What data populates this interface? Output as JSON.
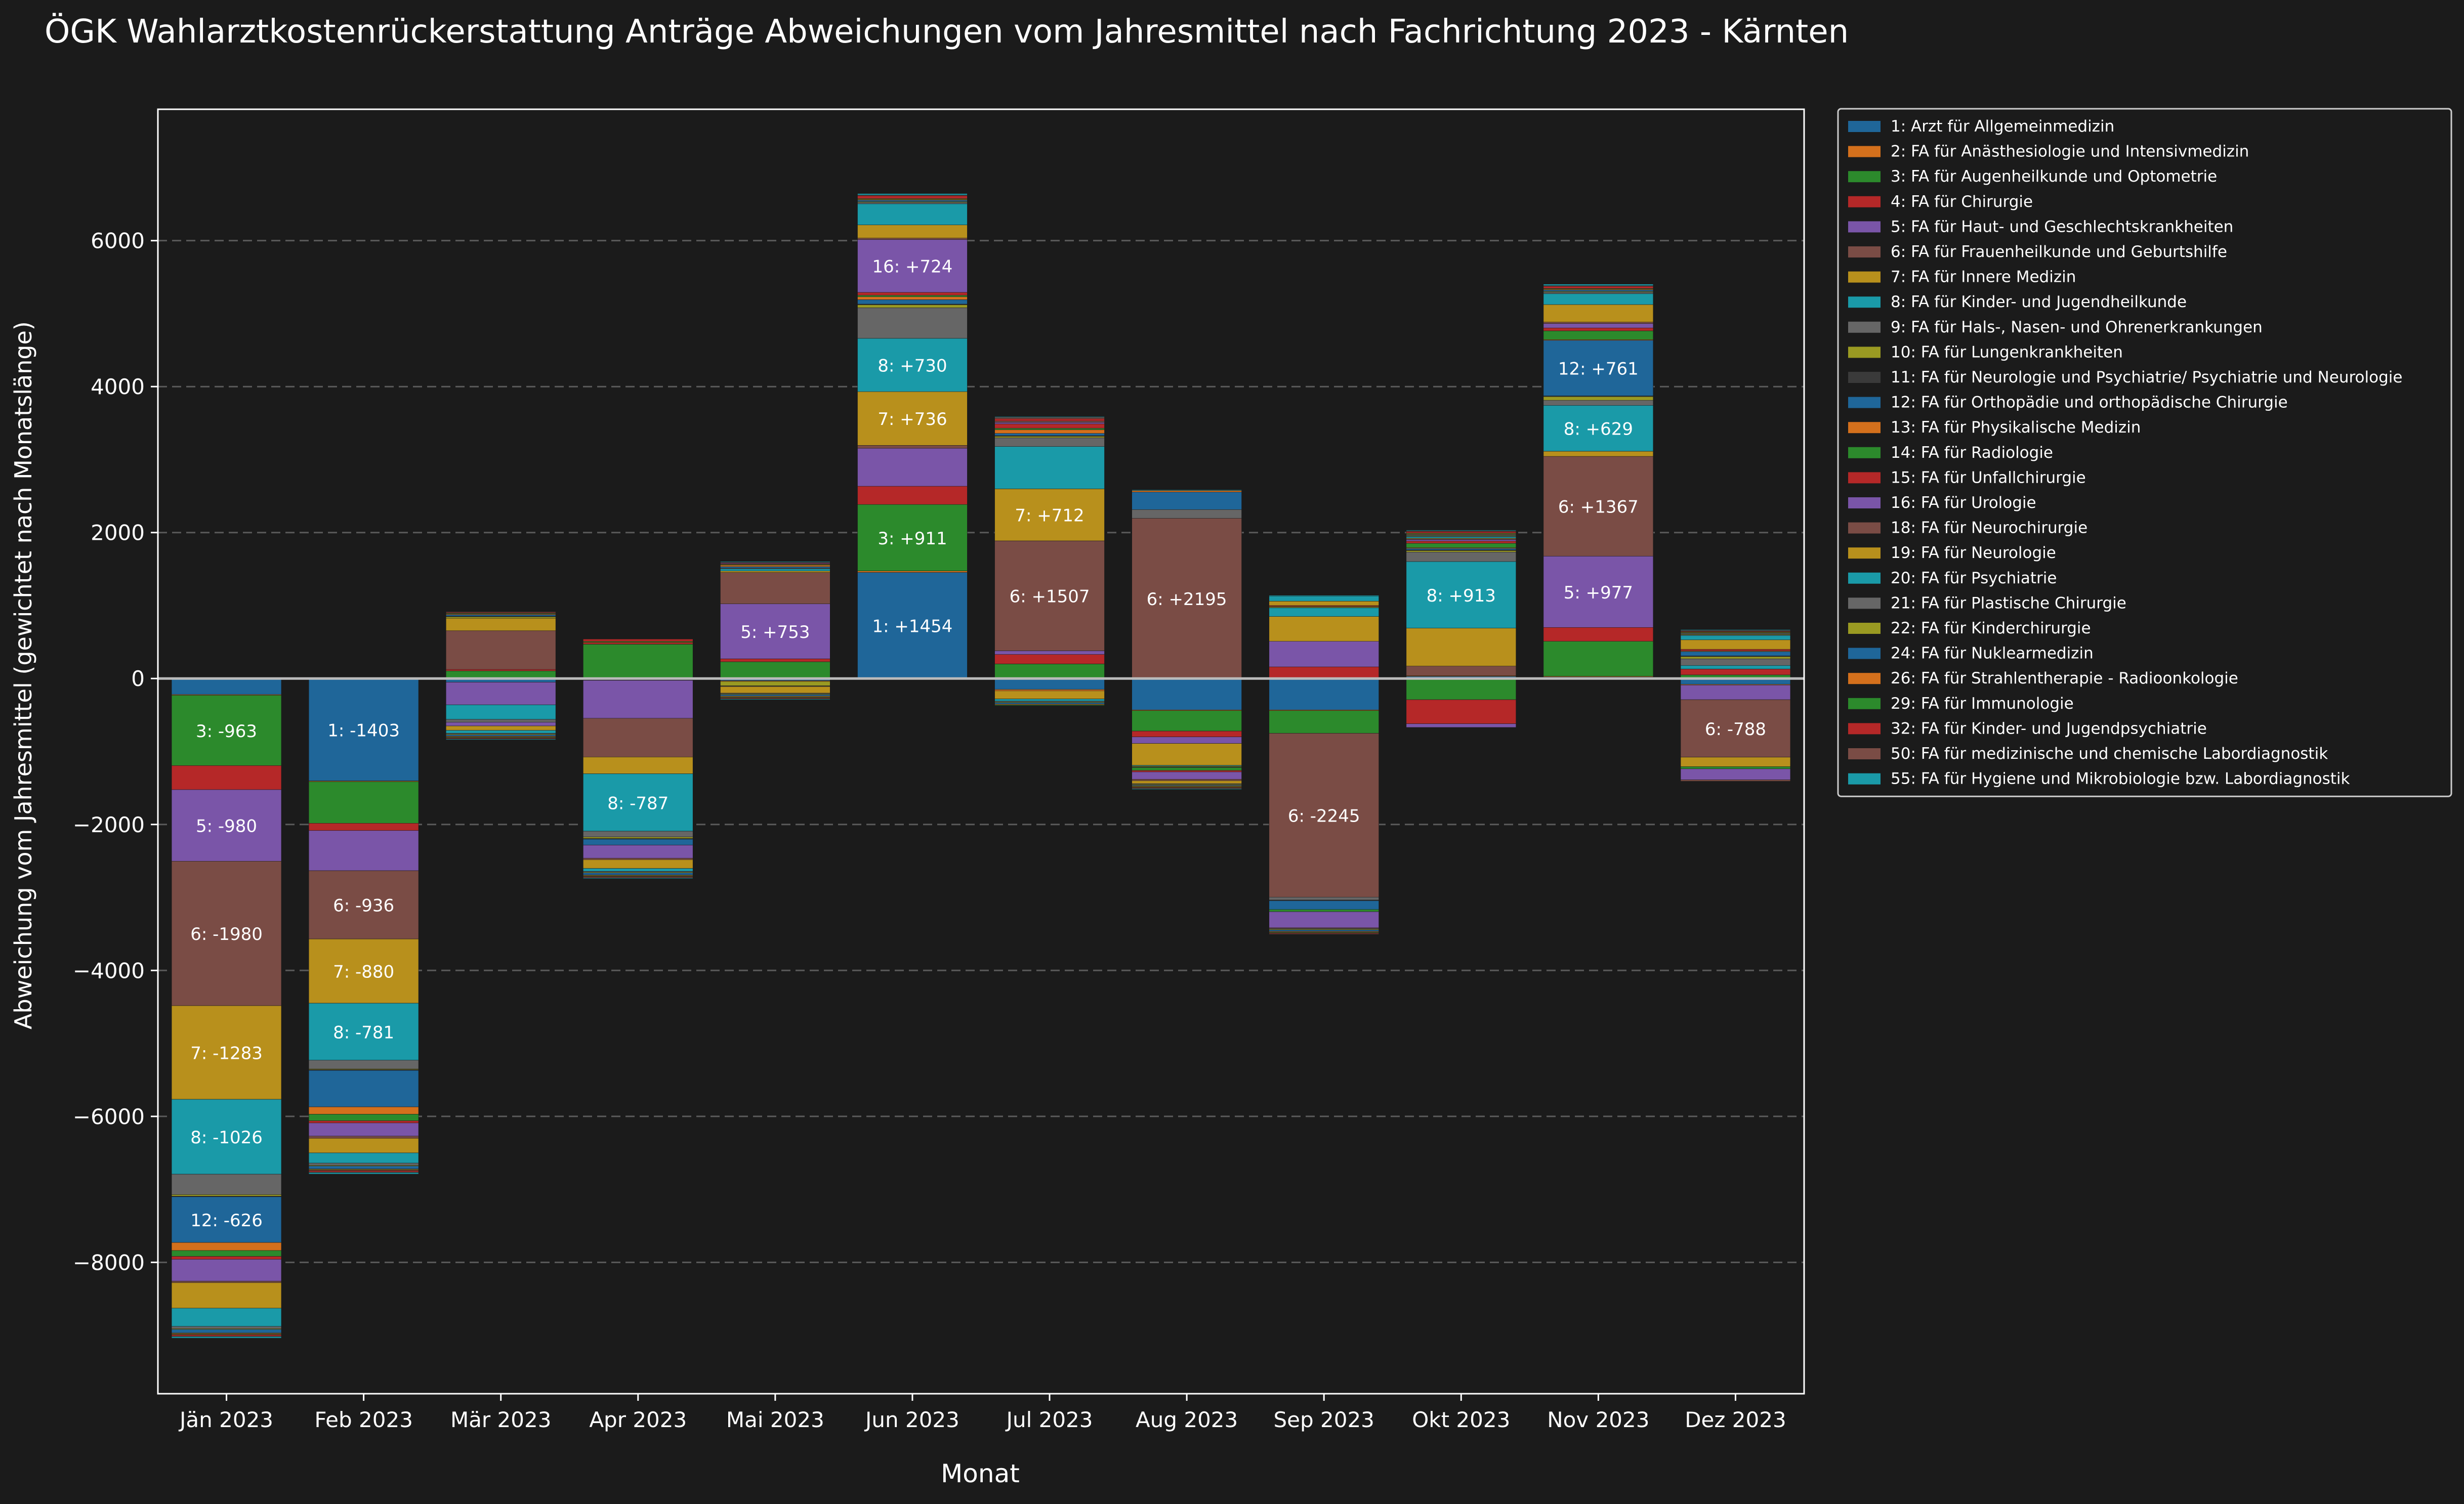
{
  "chart_data": {
    "type": "bar",
    "stacked": true,
    "title": "ÖGK Wahlarztkostenrückerstattung Anträge Abweichungen vom Jahresmittel nach Fachrichtung 2023 - Kärnten",
    "xlabel": "Monat",
    "ylabel": "Abweichung vom Jahresmittel (gewichtet nach Monatslänge)",
    "ylim": [
      -9800,
      7800
    ],
    "yticks": [
      -8000,
      -6000,
      -4000,
      -2000,
      0,
      2000,
      4000,
      6000
    ],
    "ytick_labels": [
      "−8000",
      "−6000",
      "−4000",
      "−2000",
      "0",
      "2000",
      "4000",
      "6000"
    ],
    "grid": true,
    "legend_position": "outside-right",
    "categories": [
      "Jän 2023",
      "Feb 2023",
      "Mär 2023",
      "Apr 2023",
      "Mai 2023",
      "Jun 2023",
      "Jul 2023",
      "Aug 2023",
      "Sep 2023",
      "Okt 2023",
      "Nov 2023",
      "Dez 2023"
    ],
    "label_threshold": 600,
    "colors": {
      "background": "#1b1b1b",
      "text": "#ffffff",
      "grid": "#5a5a5a",
      "zero_line": "#bbbbbb"
    },
    "series": [
      {
        "name": "1: Arzt für Allgemeinmedizin",
        "code": "1",
        "color": "#1f6699",
        "values": [
          -220,
          -1403,
          -50,
          -20,
          -30,
          1454,
          -150,
          -430,
          -430,
          30,
          20,
          -80
        ]
      },
      {
        "name": "2: FA für Anästhesiologie und Intensivmedizin",
        "code": "2",
        "color": "#d4701c",
        "values": [
          -10,
          -10,
          5,
          -5,
          -10,
          20,
          -20,
          -10,
          -10,
          10,
          10,
          -10
        ]
      },
      {
        "name": "3: FA für Augenheilkunde und Optometrie",
        "code": "3",
        "color": "#2c8a2c",
        "values": [
          -963,
          -570,
          100,
          470,
          230,
          911,
          200,
          -280,
          -310,
          -290,
          480,
          50
        ]
      },
      {
        "name": "4: FA für Chirurgie",
        "code": "4",
        "color": "#b52828",
        "values": [
          -330,
          -100,
          20,
          20,
          40,
          250,
          130,
          -80,
          160,
          -330,
          190,
          80
        ]
      },
      {
        "name": "5: FA für Haut- und Geschlechtskrankheiten",
        "code": "5",
        "color": "#7a55a8",
        "values": [
          -980,
          -550,
          -310,
          -520,
          753,
          520,
          50,
          -90,
          350,
          -50,
          977,
          -200
        ]
      },
      {
        "name": "6: FA für Frauenheilkunde und Geburtshilfe",
        "code": "6",
        "color": "#7a4c45",
        "values": [
          -1980,
          -936,
          530,
          -530,
          430,
          40,
          1507,
          2195,
          -2245,
          130,
          1367,
          -788
        ]
      },
      {
        "name": "7: FA für Innere Medizin",
        "code": "7",
        "color": "#b8901c",
        "values": [
          -1283,
          -880,
          170,
          -230,
          20,
          736,
          712,
          -300,
          340,
          520,
          70,
          -130
        ]
      },
      {
        "name": "8: FA für Kinder- und Jugendheilkunde",
        "code": "8",
        "color": "#1a9aa8",
        "values": [
          -1026,
          -781,
          -200,
          -787,
          30,
          730,
          580,
          -10,
          120,
          913,
          629,
          50
        ]
      },
      {
        "name": "9: FA für Hals-, Nasen- und Ohrenerkrankungen",
        "code": "9",
        "color": "#666666",
        "values": [
          -280,
          -120,
          -40,
          -80,
          10,
          420,
          120,
          120,
          -40,
          130,
          70,
          90
        ]
      },
      {
        "name": "10: FA für Lungenkrankheiten",
        "code": "10",
        "color": "#9a9a22",
        "values": [
          -20,
          -10,
          20,
          -20,
          -60,
          40,
          20,
          -10,
          10,
          20,
          50,
          30
        ]
      },
      {
        "name": "11: FA für Neurologie und Psychiatrie/ Psychiatrie und Neurologie",
        "code": "11",
        "color": "#3a3a3a",
        "values": [
          -10,
          -10,
          10,
          -10,
          -10,
          10,
          10,
          -10,
          -10,
          10,
          10,
          10
        ]
      },
      {
        "name": "12: FA für Orthopädie und orthopädische Chirurgie",
        "code": "12",
        "color": "#1f6699",
        "values": [
          -626,
          -500,
          20,
          -80,
          20,
          60,
          30,
          240,
          -120,
          20,
          761,
          60
        ]
      },
      {
        "name": "13: FA für Physikalische Medizin",
        "code": "13",
        "color": "#d4701c",
        "values": [
          -110,
          -100,
          10,
          10,
          20,
          40,
          50,
          20,
          10,
          10,
          10,
          10
        ]
      },
      {
        "name": "14: FA für Radiologie",
        "code": "14",
        "color": "#2c8a2c",
        "values": [
          -80,
          -90,
          10,
          10,
          10,
          20,
          20,
          -40,
          -30,
          60,
          120,
          -30
        ]
      },
      {
        "name": "15: FA für Unfallchirurgie",
        "code": "15",
        "color": "#b52828",
        "values": [
          -40,
          -30,
          10,
          30,
          10,
          40,
          60,
          -20,
          10,
          30,
          40,
          20
        ]
      },
      {
        "name": "16: FA für Urologie",
        "code": "16",
        "color": "#7a55a8",
        "values": [
          -300,
          -180,
          -50,
          -180,
          10,
          724,
          20,
          -100,
          -220,
          20,
          60,
          -150
        ]
      },
      {
        "name": "18: FA für Neurochirurgie",
        "code": "18",
        "color": "#7a4c45",
        "values": [
          -20,
          -30,
          10,
          -20,
          10,
          20,
          20,
          -20,
          -10,
          10,
          20,
          -20
        ]
      },
      {
        "name": "19: FA für Neurologie",
        "code": "19",
        "color": "#b8901c",
        "values": [
          -350,
          -200,
          -60,
          -120,
          -90,
          180,
          -110,
          -40,
          60,
          10,
          240,
          130
        ]
      },
      {
        "name": "20: FA für Psychiatrie",
        "code": "20",
        "color": "#1a9aa8",
        "values": [
          -250,
          -140,
          -40,
          -40,
          10,
          290,
          -30,
          10,
          70,
          20,
          150,
          60
        ]
      },
      {
        "name": "21: FA für Plastische Chirurgie",
        "code": "21",
        "color": "#666666",
        "values": [
          -30,
          -30,
          -10,
          -10,
          -10,
          20,
          -10,
          -10,
          -10,
          10,
          20,
          10
        ]
      },
      {
        "name": "22: FA für Kinderchirurgie",
        "code": "22",
        "color": "#9a9a22",
        "values": [
          -10,
          -10,
          -10,
          -10,
          -10,
          10,
          -10,
          -10,
          -10,
          10,
          10,
          10
        ]
      },
      {
        "name": "24: FA für Nuklearmedizin",
        "code": "24",
        "color": "#1f6699",
        "values": [
          -50,
          -40,
          -20,
          -30,
          -20,
          20,
          -20,
          -10,
          -20,
          10,
          20,
          10
        ]
      },
      {
        "name": "26: FA für Strahlentherapie - Radioonkologie",
        "code": "26",
        "color": "#d4701c",
        "values": [
          -10,
          -10,
          -10,
          -10,
          -10,
          10,
          -10,
          -10,
          -10,
          10,
          10,
          10
        ]
      },
      {
        "name": "29: FA für Immunologie",
        "code": "29",
        "color": "#2c8a2c",
        "values": [
          -10,
          -10,
          -10,
          -10,
          -10,
          10,
          -10,
          -10,
          -10,
          10,
          10,
          10
        ]
      },
      {
        "name": "32: FA für Kinder- und Jugendpsychiatrie",
        "code": "32",
        "color": "#b52828",
        "values": [
          -20,
          -20,
          -10,
          -10,
          -10,
          40,
          30,
          -10,
          -10,
          20,
          30,
          10
        ]
      },
      {
        "name": "50: FA für medizinische und chemische Labordiagnostik",
        "code": "50",
        "color": "#7a4c45",
        "values": [
          -10,
          -10,
          -10,
          -10,
          -10,
          10,
          20,
          -10,
          -10,
          10,
          10,
          10
        ]
      },
      {
        "name": "55: FA für Hygiene und Mikrobiologie bzw. Labordiagnostik",
        "code": "55",
        "color": "#1a9aa8",
        "values": [
          -20,
          -20,
          -10,
          -10,
          -10,
          20,
          10,
          -10,
          10,
          10,
          20,
          10
        ]
      }
    ]
  }
}
